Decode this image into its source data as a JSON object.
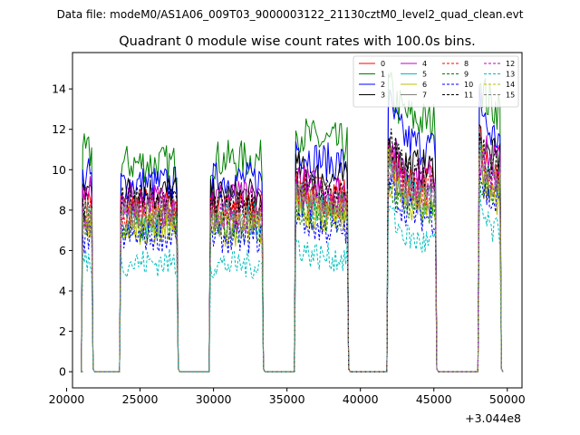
{
  "header": {
    "data_file": "Data file: modeM0/AS1A06_009T03_9000003122_21130cztM0_level2_quad_clean.evt"
  },
  "chart_data": {
    "type": "line",
    "title": "Quadrant 0 module wise count rates with 100.0s bins.",
    "xlabel": "",
    "ylabel": "",
    "x_offset_label": "+3.044e8",
    "xlim": [
      20400,
      51000
    ],
    "ylim": [
      -0.8,
      15.8
    ],
    "x_ticks": [
      20000,
      25000,
      30000,
      35000,
      40000,
      45000,
      50000
    ],
    "y_ticks": [
      0,
      2,
      4,
      6,
      8,
      10,
      12,
      14
    ],
    "grid": false,
    "legend": {
      "placement": "top-right",
      "columns": 4
    },
    "segments": [
      {
        "start": 21100,
        "end": 21700,
        "spike": 0
      },
      {
        "start": 23700,
        "end": 27500,
        "spike": 0
      },
      {
        "start": 29800,
        "end": 33300,
        "spike": 0
      },
      {
        "start": 35600,
        "end": 39100,
        "spike": 1.0
      },
      {
        "start": 41900,
        "end": 45100,
        "spike": 2.5
      },
      {
        "start": 48100,
        "end": 49500,
        "spike": 2.5
      }
    ],
    "series": [
      {
        "name": "0",
        "color": "#ff0000",
        "dash": false,
        "levels": [
          8.5,
          8.3,
          8.2,
          8.8,
          9.3,
          9.8
        ]
      },
      {
        "name": "1",
        "color": "#008000",
        "dash": false,
        "levels": [
          10.8,
          10.3,
          10.5,
          11.3,
          12.3,
          13.0
        ]
      },
      {
        "name": "2",
        "color": "#0000ff",
        "dash": false,
        "levels": [
          9.7,
          9.3,
          9.5,
          10.3,
          11.0,
          11.5
        ]
      },
      {
        "name": "3",
        "color": "#000000",
        "dash": false,
        "levels": [
          9.0,
          8.9,
          8.7,
          9.5,
          10.0,
          10.5
        ]
      },
      {
        "name": "4",
        "color": "#c000c0",
        "dash": false,
        "levels": [
          8.8,
          8.5,
          8.6,
          9.0,
          9.6,
          10.3
        ]
      },
      {
        "name": "5",
        "color": "#00bfbf",
        "dash": false,
        "levels": [
          7.6,
          7.5,
          7.6,
          8.0,
          8.5,
          9.0
        ]
      },
      {
        "name": "6",
        "color": "#bfbf00",
        "dash": false,
        "levels": [
          7.2,
          7.1,
          7.0,
          7.6,
          8.1,
          8.6
        ]
      },
      {
        "name": "7",
        "color": "#808080",
        "dash": false,
        "levels": [
          7.5,
          7.6,
          7.4,
          8.0,
          8.5,
          9.0
        ]
      },
      {
        "name": "8",
        "color": "#ff0000",
        "dash": true,
        "levels": [
          8.0,
          8.0,
          7.9,
          8.3,
          8.8,
          9.4
        ]
      },
      {
        "name": "9",
        "color": "#008000",
        "dash": true,
        "levels": [
          7.3,
          7.2,
          7.1,
          7.4,
          7.9,
          8.4
        ]
      },
      {
        "name": "10",
        "color": "#0000ff",
        "dash": true,
        "levels": [
          6.5,
          6.7,
          6.6,
          7.0,
          7.6,
          8.2
        ]
      },
      {
        "name": "11",
        "color": "#000000",
        "dash": true,
        "levels": [
          8.3,
          8.4,
          8.2,
          8.8,
          9.4,
          10.0
        ]
      },
      {
        "name": "12",
        "color": "#c000c0",
        "dash": true,
        "levels": [
          7.8,
          7.9,
          7.7,
          8.4,
          8.9,
          9.5
        ]
      },
      {
        "name": "13",
        "color": "#00bfbf",
        "dash": true,
        "levels": [
          5.5,
          5.4,
          5.3,
          5.6,
          6.3,
          6.8
        ]
      },
      {
        "name": "14",
        "color": "#bfbf00",
        "dash": true,
        "levels": [
          7.4,
          7.5,
          7.3,
          7.8,
          8.3,
          9.0
        ]
      },
      {
        "name": "15",
        "color": "#808080",
        "dash": true,
        "levels": [
          7.9,
          8.0,
          7.8,
          8.4,
          8.9,
          9.6
        ]
      }
    ]
  }
}
